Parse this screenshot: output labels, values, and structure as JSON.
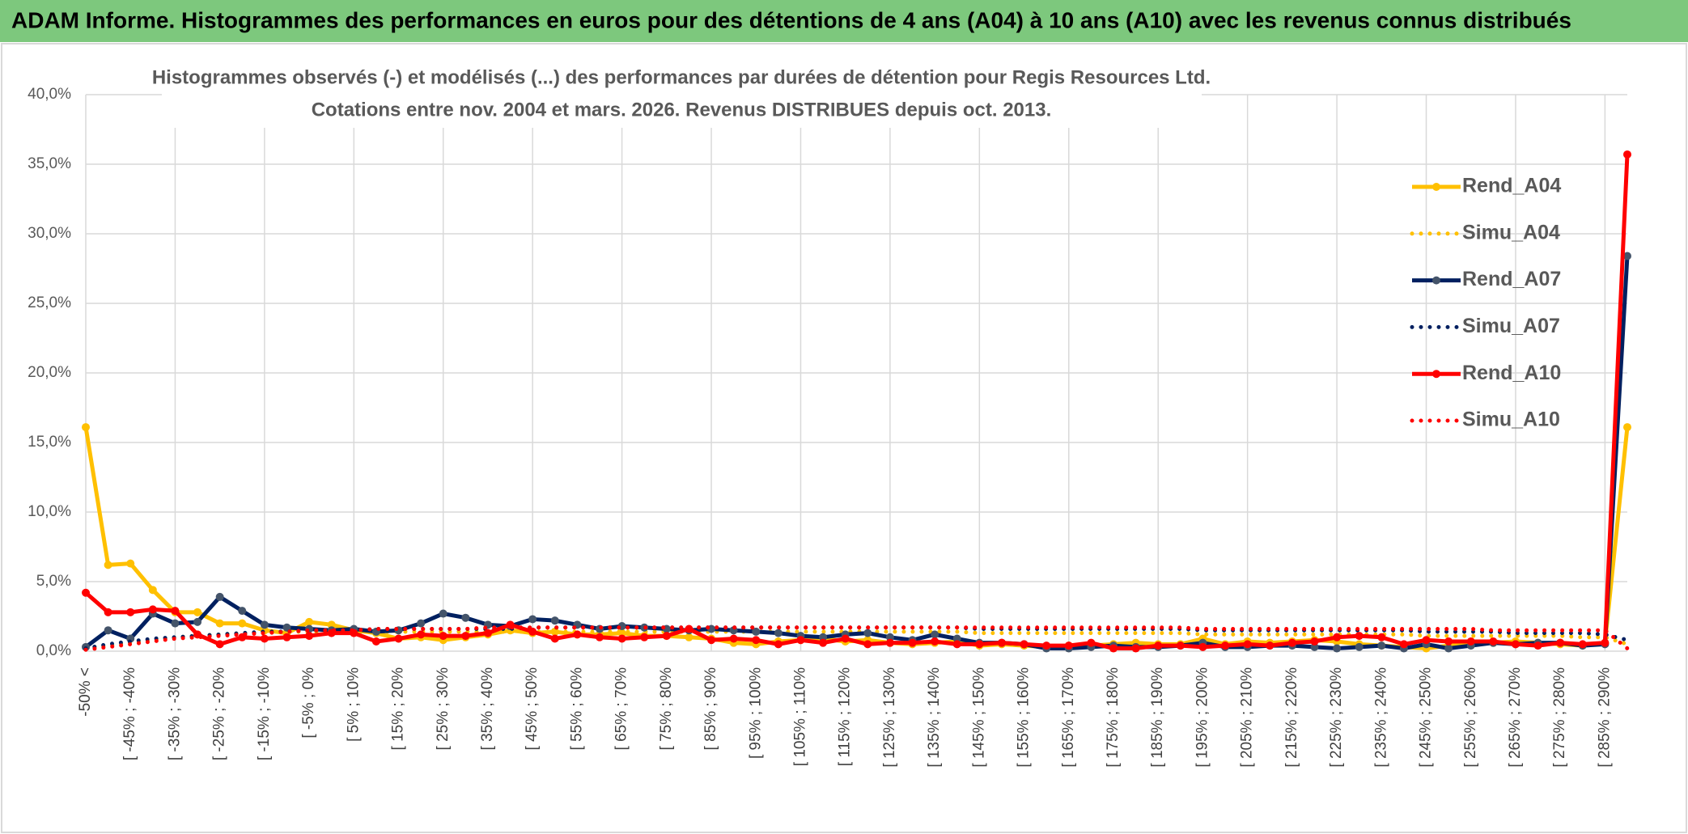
{
  "header": {
    "title": "ADAM Informe. Histogrammes des performances en euros pour des détentions de 4 ans (A04) à 10 ans (A10) avec les revenus connus distribués"
  },
  "chart_data": {
    "type": "line",
    "title": "Histogrammes observés (-) et modélisés (...) des performances par durées de détention pour Regis Resources Ltd.",
    "subtitle": "Cotations entre nov. 2004 et mars. 2026. Revenus DISTRIBUES depuis oct. 2013.",
    "categories": [
      "-50% <",
      null,
      "[ -45% ; -40%",
      null,
      "[ -35% ; -30%",
      null,
      "[ -25% ; -20%",
      null,
      "[ -15% ; -10%",
      null,
      "[ -5% ; 0%",
      null,
      "[ 5% ; 10%",
      null,
      "[ 15% ; 20%",
      null,
      "[ 25% ; 30%",
      null,
      "[ 35% ; 40%",
      null,
      "[ 45% ; 50%",
      null,
      "[ 55% ; 60%",
      null,
      "[ 65% ; 70%",
      null,
      "[ 75% ; 80%",
      null,
      "[ 85% ; 90%",
      null,
      "[ 95% ; 100%",
      null,
      "[ 105% ; 110%",
      null,
      "[ 115% ; 120%",
      null,
      "[ 125% ; 130%",
      null,
      "[ 135% ; 140%",
      null,
      "[ 145% ; 150%",
      null,
      "[ 155% ; 160%",
      null,
      "[ 165% ; 170%",
      null,
      "[ 175% ; 180%",
      null,
      "[ 185% ; 190%",
      null,
      "[ 195% ; 200%",
      null,
      "[ 205% ; 210%",
      null,
      "[ 215% ; 220%",
      null,
      "[ 225% ; 230%",
      null,
      "[ 235% ; 240%",
      null,
      "[ 245% ; 250%",
      null,
      "[ 255% ; 260%",
      null,
      "[ 265% ; 270%",
      null,
      "[ 275% ; 280%",
      null,
      "[ 285% ; 290%",
      null
    ],
    "series": [
      {
        "name": "Rend_A04",
        "color": "#FFC000",
        "dotted": false,
        "values": [
          16.1,
          6.2,
          6.3,
          4.4,
          2.8,
          2.8,
          2.0,
          2.0,
          1.5,
          1.3,
          2.1,
          1.9,
          1.5,
          1.3,
          0.9,
          1.0,
          0.8,
          1.0,
          1.2,
          1.5,
          1.3,
          1.4,
          1.2,
          1.2,
          1.3,
          1.1,
          1.1,
          1.0,
          0.9,
          0.6,
          0.5,
          0.7,
          0.8,
          0.9,
          0.7,
          0.8,
          0.6,
          0.5,
          0.6,
          0.7,
          0.4,
          0.5,
          0.4,
          0.3,
          0.4,
          0.4,
          0.5,
          0.6,
          0.5,
          0.5,
          0.9,
          0.5,
          0.7,
          0.6,
          0.7,
          0.8,
          0.7,
          0.5,
          0.4,
          0.3,
          0.2,
          0.4,
          0.5,
          0.6,
          0.7,
          0.6,
          0.5,
          0.4,
          0.6,
          16.1
        ]
      },
      {
        "name": "Simu_A04",
        "color": "#FFC000",
        "dotted": true,
        "values": [
          0.2,
          0.4,
          0.6,
          0.8,
          1.0,
          1.1,
          1.2,
          1.3,
          1.3,
          1.4,
          1.4,
          1.4,
          1.4,
          1.4,
          1.4,
          1.4,
          1.4,
          1.4,
          1.4,
          1.4,
          1.4,
          1.4,
          1.4,
          1.4,
          1.4,
          1.4,
          1.4,
          1.4,
          1.4,
          1.4,
          1.4,
          1.4,
          1.4,
          1.4,
          1.4,
          1.4,
          1.4,
          1.4,
          1.4,
          1.4,
          1.3,
          1.3,
          1.3,
          1.3,
          1.3,
          1.3,
          1.3,
          1.3,
          1.3,
          1.3,
          1.2,
          1.2,
          1.2,
          1.2,
          1.2,
          1.2,
          1.2,
          1.2,
          1.2,
          1.2,
          1.1,
          1.1,
          1.1,
          1.1,
          1.1,
          1.1,
          1.1,
          1.0,
          1.0,
          0.5
        ]
      },
      {
        "name": "Rend_A07",
        "color": "#002060",
        "marker": "#44546A",
        "dotted": false,
        "values": [
          0.3,
          1.5,
          0.9,
          2.7,
          2.0,
          2.1,
          3.9,
          2.9,
          1.9,
          1.7,
          1.6,
          1.5,
          1.6,
          1.4,
          1.5,
          2.0,
          2.7,
          2.4,
          1.9,
          1.8,
          2.3,
          2.2,
          1.9,
          1.6,
          1.8,
          1.7,
          1.6,
          1.5,
          1.6,
          1.5,
          1.4,
          1.3,
          1.1,
          1.0,
          1.2,
          1.3,
          1.0,
          0.8,
          1.2,
          0.9,
          0.6,
          0.6,
          0.5,
          0.2,
          0.2,
          0.3,
          0.4,
          0.3,
          0.3,
          0.4,
          0.6,
          0.3,
          0.3,
          0.4,
          0.4,
          0.3,
          0.2,
          0.3,
          0.4,
          0.2,
          0.5,
          0.2,
          0.4,
          0.6,
          0.5,
          0.6,
          0.6,
          0.4,
          0.5,
          28.4
        ]
      },
      {
        "name": "Simu_A07",
        "color": "#002060",
        "dotted": true,
        "values": [
          0.2,
          0.5,
          0.7,
          0.9,
          1.0,
          1.1,
          1.2,
          1.3,
          1.4,
          1.4,
          1.5,
          1.5,
          1.5,
          1.6,
          1.6,
          1.6,
          1.6,
          1.6,
          1.6,
          1.6,
          1.7,
          1.7,
          1.7,
          1.7,
          1.7,
          1.7,
          1.7,
          1.7,
          1.7,
          1.7,
          1.7,
          1.7,
          1.7,
          1.7,
          1.7,
          1.7,
          1.7,
          1.7,
          1.7,
          1.7,
          1.6,
          1.6,
          1.6,
          1.6,
          1.6,
          1.6,
          1.6,
          1.6,
          1.6,
          1.6,
          1.5,
          1.5,
          1.5,
          1.5,
          1.5,
          1.5,
          1.5,
          1.5,
          1.5,
          1.5,
          1.4,
          1.4,
          1.4,
          1.4,
          1.3,
          1.3,
          1.3,
          1.3,
          1.2,
          0.8
        ]
      },
      {
        "name": "Rend_A10",
        "color": "#FF0000",
        "dotted": false,
        "values": [
          4.2,
          2.8,
          2.8,
          3.0,
          2.9,
          1.2,
          0.5,
          1.0,
          0.9,
          1.0,
          1.1,
          1.3,
          1.3,
          0.7,
          0.9,
          1.2,
          1.1,
          1.1,
          1.3,
          1.9,
          1.4,
          0.9,
          1.2,
          1.0,
          0.9,
          1.0,
          1.1,
          1.6,
          0.8,
          0.9,
          0.8,
          0.5,
          0.8,
          0.6,
          0.9,
          0.5,
          0.6,
          0.6,
          0.7,
          0.5,
          0.5,
          0.6,
          0.5,
          0.4,
          0.4,
          0.6,
          0.2,
          0.2,
          0.4,
          0.4,
          0.3,
          0.4,
          0.5,
          0.4,
          0.6,
          0.7,
          1.0,
          1.1,
          1.0,
          0.5,
          0.8,
          0.7,
          0.7,
          0.7,
          0.5,
          0.4,
          0.6,
          0.5,
          0.6,
          35.7
        ]
      },
      {
        "name": "Simu_A10",
        "color": "#FF0000",
        "dotted": true,
        "values": [
          0.1,
          0.3,
          0.5,
          0.7,
          0.9,
          1.0,
          1.1,
          1.2,
          1.3,
          1.4,
          1.5,
          1.5,
          1.5,
          1.6,
          1.6,
          1.6,
          1.6,
          1.6,
          1.7,
          1.7,
          1.7,
          1.7,
          1.7,
          1.7,
          1.7,
          1.7,
          1.7,
          1.7,
          1.7,
          1.7,
          1.7,
          1.7,
          1.7,
          1.7,
          1.7,
          1.7,
          1.7,
          1.7,
          1.7,
          1.7,
          1.7,
          1.7,
          1.7,
          1.7,
          1.7,
          1.7,
          1.7,
          1.7,
          1.7,
          1.7,
          1.6,
          1.6,
          1.6,
          1.6,
          1.6,
          1.6,
          1.6,
          1.6,
          1.6,
          1.6,
          1.6,
          1.6,
          1.6,
          1.5,
          1.5,
          1.5,
          1.5,
          1.5,
          1.5,
          0.2
        ]
      }
    ],
    "ylim": [
      0,
      40
    ],
    "yticks": [
      {
        "value": 0,
        "label": "0,0%"
      },
      {
        "value": 5,
        "label": "5,0%"
      },
      {
        "value": 10,
        "label": "10,0%"
      },
      {
        "value": 15,
        "label": "15,0%"
      },
      {
        "value": 20,
        "label": "20,0%"
      },
      {
        "value": 25,
        "label": "25,0%"
      },
      {
        "value": 30,
        "label": "30,0%"
      },
      {
        "value": 35,
        "label": "35,0%"
      },
      {
        "value": 40,
        "label": "40,0%"
      }
    ],
    "grid": true,
    "legend": "right"
  }
}
